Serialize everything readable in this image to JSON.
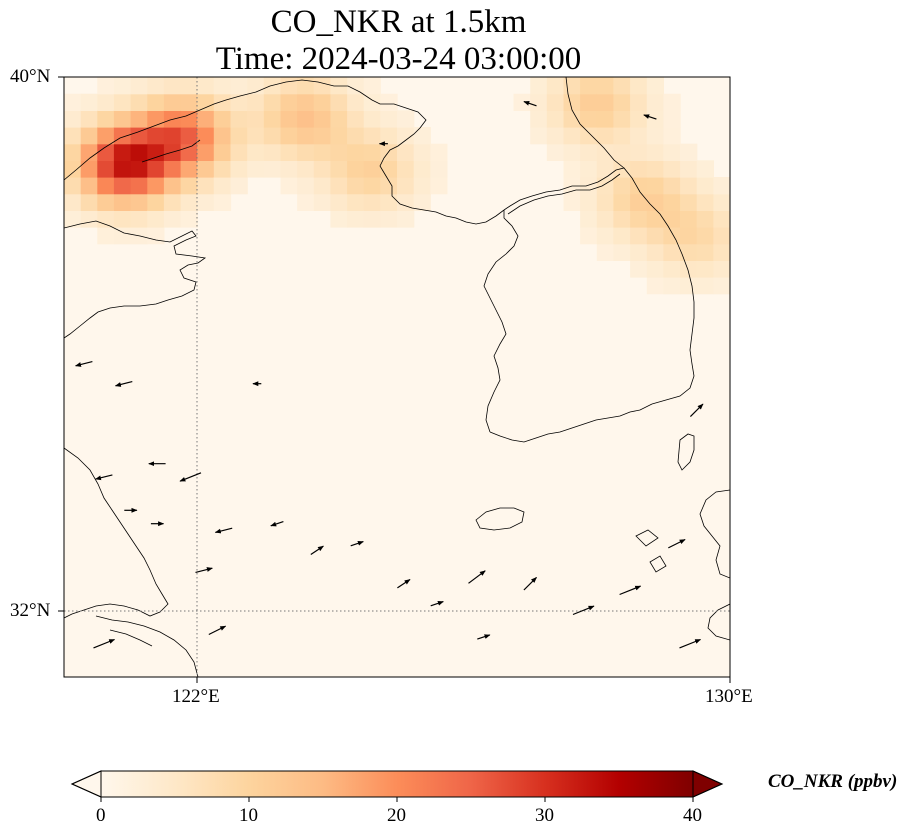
{
  "title": {
    "line1": "CO_NKR at 1.5km",
    "line2": "Time: 2024-03-24 03:00:00"
  },
  "map": {
    "lon_range": [
      120,
      130
    ],
    "lat_range": [
      31,
      40
    ],
    "gridlines": {
      "lons": [
        122
      ],
      "lats": [
        32
      ],
      "style": "dotted"
    },
    "y_tick_labels": [
      "40°N",
      "32°N"
    ],
    "x_tick_labels": [
      "122°E",
      "130°E"
    ]
  },
  "colorbar": {
    "label": "CO_NKR (ppbv)",
    "ticks": [
      "0",
      "10",
      "20",
      "30",
      "40"
    ],
    "range": [
      0,
      40
    ],
    "extend": "both",
    "colormap": "OrRd",
    "colors": [
      "#fff7ec",
      "#fee8c8",
      "#fdd49e",
      "#fdbb84",
      "#fc8d59",
      "#ef6548",
      "#d7301f",
      "#b30000",
      "#7f0000"
    ]
  },
  "field_features": [
    {
      "lon": 120.9,
      "lat": 38.7,
      "value": 30,
      "note": ""
    },
    {
      "lon": 121.8,
      "lat": 39.1,
      "value": 22,
      "note": ""
    },
    {
      "lon": 123.6,
      "lat": 39.4,
      "value": 12,
      "note": ""
    },
    {
      "lon": 124.6,
      "lat": 38.6,
      "value": 9,
      "note": ""
    },
    {
      "lon": 128.0,
      "lat": 39.6,
      "value": 10,
      "note": ""
    },
    {
      "lon": 128.7,
      "lat": 38.2,
      "value": 9,
      "note": ""
    },
    {
      "lon": 129.5,
      "lat": 37.6,
      "value": 7,
      "note": ""
    }
  ],
  "wind_vectors": [
    {
      "lon": 120.6,
      "lat": 31.5,
      "u": 0.5,
      "v": 0.2
    },
    {
      "lon": 120.3,
      "lat": 35.7,
      "u": -0.4,
      "v": -0.1
    },
    {
      "lon": 120.6,
      "lat": 34.0,
      "u": -0.4,
      "v": -0.1
    },
    {
      "lon": 120.9,
      "lat": 35.4,
      "u": -0.4,
      "v": -0.1
    },
    {
      "lon": 121.0,
      "lat": 33.5,
      "u": 0.3,
      "v": 0.0
    },
    {
      "lon": 121.4,
      "lat": 33.3,
      "u": 0.3,
      "v": 0.0
    },
    {
      "lon": 121.4,
      "lat": 34.2,
      "u": -0.4,
      "v": 0.0
    },
    {
      "lon": 121.9,
      "lat": 34.0,
      "u": -0.5,
      "v": -0.2
    },
    {
      "lon": 122.4,
      "lat": 33.2,
      "u": -0.4,
      "v": -0.1
    },
    {
      "lon": 122.1,
      "lat": 32.6,
      "u": 0.4,
      "v": 0.1
    },
    {
      "lon": 122.3,
      "lat": 31.7,
      "u": 0.4,
      "v": 0.2
    },
    {
      "lon": 122.9,
      "lat": 35.4,
      "u": -0.2,
      "v": 0.0
    },
    {
      "lon": 123.2,
      "lat": 33.3,
      "u": -0.3,
      "v": -0.1
    },
    {
      "lon": 123.8,
      "lat": 32.9,
      "u": 0.3,
      "v": 0.2
    },
    {
      "lon": 124.4,
      "lat": 33.0,
      "u": 0.3,
      "v": 0.1
    },
    {
      "lon": 125.1,
      "lat": 32.4,
      "u": 0.3,
      "v": 0.2
    },
    {
      "lon": 125.6,
      "lat": 32.1,
      "u": 0.3,
      "v": 0.1
    },
    {
      "lon": 126.2,
      "lat": 32.5,
      "u": 0.4,
      "v": 0.3
    },
    {
      "lon": 126.3,
      "lat": 31.6,
      "u": 0.3,
      "v": 0.1
    },
    {
      "lon": 127.0,
      "lat": 32.4,
      "u": 0.3,
      "v": 0.3
    },
    {
      "lon": 127.8,
      "lat": 32.0,
      "u": 0.5,
      "v": 0.2
    },
    {
      "lon": 128.5,
      "lat": 32.3,
      "u": 0.5,
      "v": 0.2
    },
    {
      "lon": 129.2,
      "lat": 33.0,
      "u": 0.4,
      "v": 0.2
    },
    {
      "lon": 129.4,
      "lat": 31.5,
      "u": 0.5,
      "v": 0.2
    },
    {
      "lon": 129.5,
      "lat": 35.0,
      "u": 0.3,
      "v": 0.3
    },
    {
      "lon": 128.8,
      "lat": 39.4,
      "u": -0.3,
      "v": 0.1
    },
    {
      "lon": 127.0,
      "lat": 39.6,
      "u": -0.3,
      "v": 0.1
    },
    {
      "lon": 124.8,
      "lat": 39.0,
      "u": -0.2,
      "v": 0.0
    }
  ]
}
